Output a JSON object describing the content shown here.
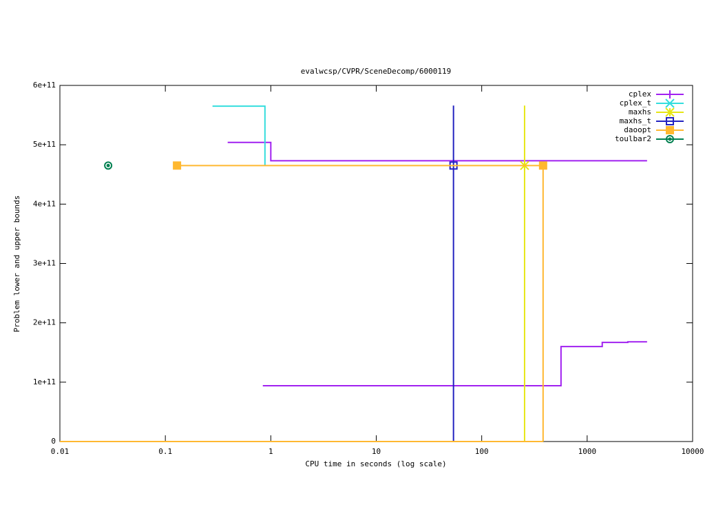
{
  "chart_data": {
    "type": "line",
    "title": "evalwcsp/CVPR/SceneDecomp/6000119",
    "x_label": "CPU time in seconds (log scale)",
    "y_label": "Problem lower and upper bounds",
    "x_log": true,
    "xlim": [
      0.01,
      10000
    ],
    "xticks": [
      0.01,
      0.1,
      1,
      10,
      100,
      1000,
      10000
    ],
    "ylim": [
      0,
      600000000000
    ],
    "yticks": [
      0,
      {
        "value": 100000000000,
        "label": "1e+11"
      },
      {
        "value": 200000000000,
        "label": "2e+11"
      },
      {
        "value": 300000000000,
        "label": "3e+11"
      },
      {
        "value": 400000000000,
        "label": "4e+11"
      },
      {
        "value": 500000000000,
        "label": "5e+11"
      },
      {
        "value": 600000000000,
        "label": "6e+11"
      }
    ],
    "legend": "top-right",
    "series": [
      {
        "name": "cplex",
        "color": "#a020f0",
        "marker": "plus",
        "x": [
          0.39,
          1,
          1,
          3700,
          null,
          0.84,
          565,
          565,
          1390,
          1390,
          2430,
          2430,
          3700
        ],
        "values": [
          504000000000,
          504000000000,
          473000000000,
          473000000000,
          null,
          94000000000,
          94000000000,
          160000000000,
          160000000000,
          167000000000,
          167000000000,
          168000000000,
          168000000000
        ]
      },
      {
        "name": "cplex_t",
        "color": "#33dddd",
        "marker": "cross",
        "x": [
          0.28,
          0.88,
          0.88
        ],
        "values": [
          565000000000,
          565000000000,
          465000000000
        ]
      },
      {
        "name": "maxhs",
        "color": "#e6e614",
        "marker": "star",
        "x": [
          255,
          255,
          null,
          0.01,
          255
        ],
        "values": [
          566000000000,
          0,
          null,
          0,
          0
        ],
        "marker_x": [
          255
        ],
        "marker_values": [
          465000000000
        ]
      },
      {
        "name": "maxhs_t",
        "color": "#2222c0",
        "marker": "box",
        "x": [
          54,
          54,
          null,
          0.01,
          54
        ],
        "values": [
          566000000000,
          0,
          null,
          0,
          0
        ],
        "marker_x": [
          54
        ],
        "marker_values": [
          465000000000
        ]
      },
      {
        "name": "daoopt",
        "color": "#ffb830",
        "marker": "filled-box",
        "x": [
          0.129,
          382,
          382,
          null,
          0.01,
          382
        ],
        "values": [
          465000000000,
          465000000000,
          0,
          null,
          0,
          0
        ],
        "marker_x": [
          0.129,
          382
        ],
        "marker_values": [
          465000000000,
          465000000000
        ]
      },
      {
        "name": "toulbar2",
        "color": "#008050",
        "marker": "circle",
        "marker_x": [
          0.0287
        ],
        "marker_values": [
          465000000000
        ]
      }
    ]
  }
}
